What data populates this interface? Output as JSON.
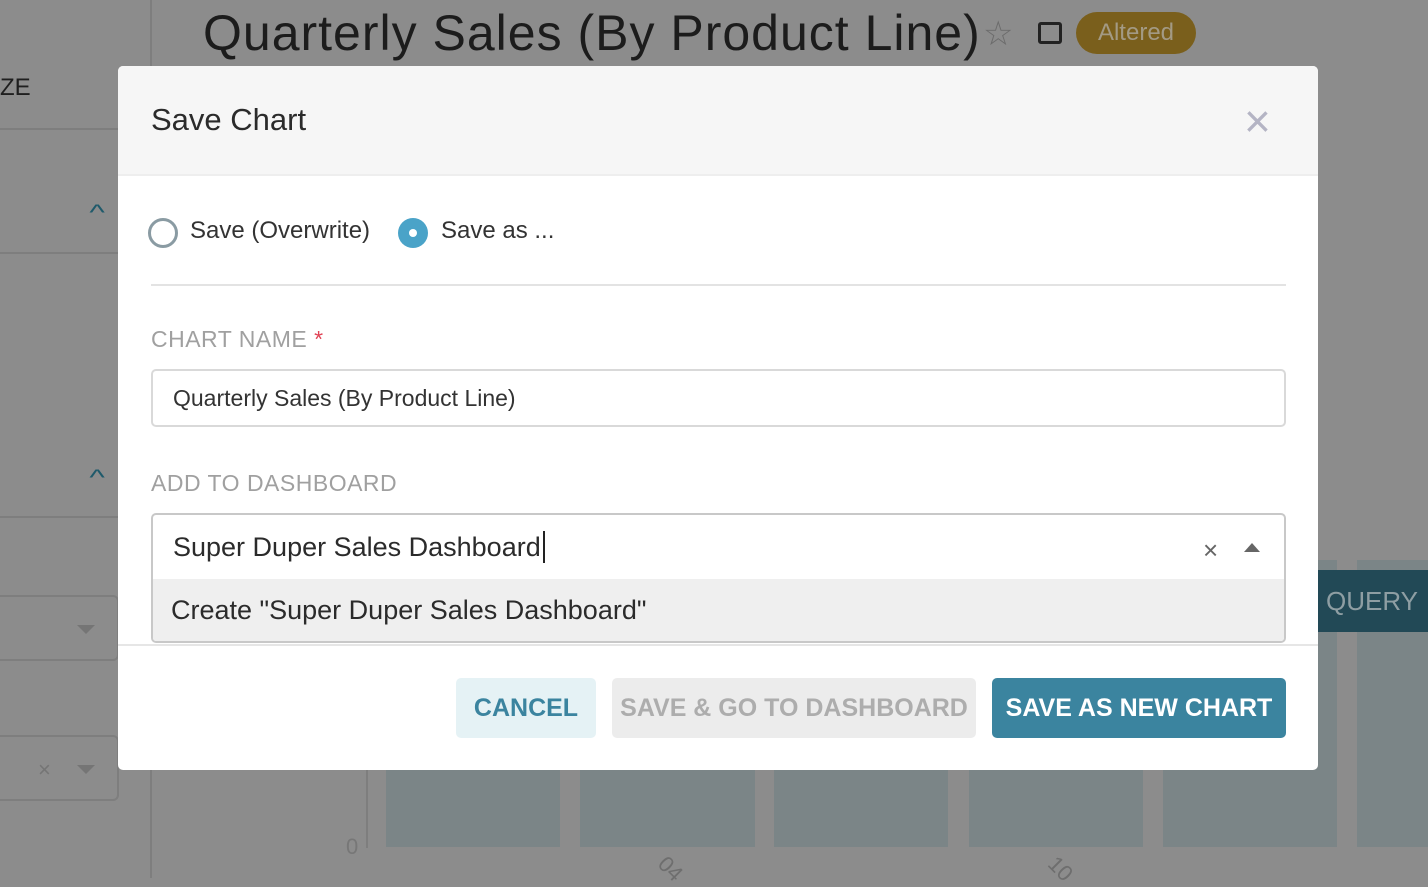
{
  "background": {
    "sidebar_label_partial": "ZE",
    "chart_title": "Quarterly Sales (By Product Line)",
    "status_badge": "Altered",
    "run_query_partial": "QUERY",
    "y_tick_zero": "0",
    "x_ticks_partial": [
      "04",
      "10"
    ]
  },
  "modal": {
    "title": "Save Chart",
    "radio_options": [
      {
        "label": "Save (Overwrite)",
        "selected": false
      },
      {
        "label": "Save as ...",
        "selected": true
      }
    ],
    "chart_name_label": "CHART NAME",
    "required_mark": "*",
    "chart_name_value": "Quarterly Sales (By Product Line)",
    "dashboard_label": "ADD TO DASHBOARD",
    "dashboard_value": "Super Duper Sales Dashboard",
    "dashboard_option": "Create \"Super Duper Sales Dashboard\"",
    "buttons": {
      "cancel": "CANCEL",
      "save_go": "SAVE & GO TO DASHBOARD",
      "save_new": "SAVE AS NEW CHART"
    }
  },
  "colors": {
    "primary": "#3b849f",
    "radio": "#4aa3c8",
    "required": "#e04355"
  }
}
